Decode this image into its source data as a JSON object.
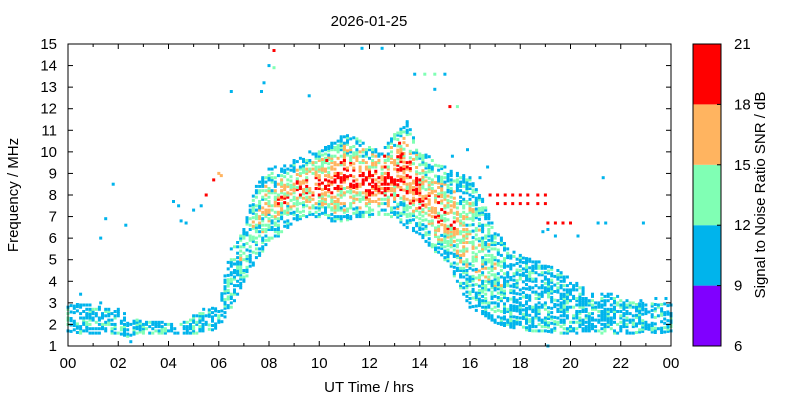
{
  "chart_data": {
    "type": "heatmap",
    "title": "2026-01-25",
    "xlabel": "UT Time / hrs",
    "ylabel": "Frequency / MHz",
    "xlim": [
      0,
      24
    ],
    "ylim": [
      1,
      15
    ],
    "x_ticks": [
      "00",
      "02",
      "04",
      "06",
      "08",
      "10",
      "12",
      "14",
      "16",
      "18",
      "20",
      "22",
      "00"
    ],
    "y_ticks": [
      "1",
      "2",
      "3",
      "4",
      "5",
      "6",
      "7",
      "8",
      "9",
      "10",
      "11",
      "12",
      "13",
      "14",
      "15"
    ],
    "colorbar": {
      "label": "Signal to Noise Ratio SNR / dB",
      "ticks": [
        "6",
        "9",
        "12",
        "15",
        "18",
        "21"
      ],
      "bins": [
        {
          "from": 6,
          "to": 9,
          "color": "#8000ff"
        },
        {
          "from": 9,
          "to": 12,
          "color": "#00b4ec"
        },
        {
          "from": 12,
          "to": 15,
          "color": "#80ffb4"
        },
        {
          "from": 15,
          "to": 18,
          "color": "#ffb460"
        },
        {
          "from": 18,
          "to": 21,
          "color": "#ff0000"
        }
      ]
    },
    "profile": [
      [
        0.0,
        1.7,
        2.9
      ],
      [
        0.5,
        1.6,
        3.0
      ],
      [
        1.0,
        1.6,
        2.9
      ],
      [
        1.5,
        1.6,
        2.8
      ],
      [
        2.0,
        1.6,
        2.8
      ],
      [
        2.5,
        1.4,
        2.3
      ],
      [
        3.0,
        1.6,
        2.2
      ],
      [
        3.5,
        1.6,
        2.2
      ],
      [
        4.0,
        1.6,
        2.1
      ],
      [
        4.5,
        1.6,
        2.1
      ],
      [
        5.0,
        1.6,
        2.5
      ],
      [
        5.5,
        1.6,
        2.6
      ],
      [
        6.0,
        1.9,
        3.0
      ],
      [
        6.5,
        2.8,
        5.5
      ],
      [
        7.0,
        4.0,
        6.5
      ],
      [
        7.5,
        5.0,
        8.5
      ],
      [
        8.0,
        5.8,
        9.2
      ],
      [
        8.5,
        6.2,
        9.4
      ],
      [
        9.0,
        6.8,
        9.6
      ],
      [
        9.5,
        7.0,
        10.0
      ],
      [
        10.0,
        7.0,
        10.0
      ],
      [
        10.5,
        6.8,
        10.4
      ],
      [
        11.0,
        6.8,
        10.8
      ],
      [
        11.5,
        7.0,
        10.6
      ],
      [
        12.0,
        7.0,
        10.3
      ],
      [
        12.5,
        7.0,
        10.0
      ],
      [
        13.0,
        7.0,
        10.8
      ],
      [
        13.5,
        6.5,
        11.4
      ],
      [
        14.0,
        6.2,
        10.0
      ],
      [
        14.5,
        5.5,
        9.7
      ],
      [
        15.0,
        5.0,
        9.3
      ],
      [
        15.5,
        4.0,
        9.0
      ],
      [
        16.0,
        2.8,
        8.8
      ],
      [
        16.5,
        2.5,
        7.8
      ],
      [
        17.0,
        2.1,
        6.5
      ],
      [
        17.5,
        1.9,
        5.5
      ],
      [
        18.0,
        1.8,
        5.2
      ],
      [
        18.5,
        1.7,
        5.0
      ],
      [
        19.0,
        1.7,
        4.8
      ],
      [
        19.5,
        1.6,
        4.5
      ],
      [
        20.0,
        1.6,
        4.2
      ],
      [
        20.5,
        1.6,
        3.8
      ],
      [
        21.0,
        1.6,
        3.5
      ],
      [
        21.5,
        1.6,
        3.5
      ],
      [
        22.0,
        1.6,
        3.3
      ],
      [
        22.5,
        1.6,
        3.1
      ],
      [
        23.0,
        1.7,
        3.0
      ],
      [
        23.5,
        1.6,
        3.0
      ],
      [
        24.0,
        1.7,
        3.0
      ]
    ],
    "points": [
      [
        8.2,
        14.7,
        20
      ],
      [
        9.6,
        12.6,
        10
      ],
      [
        6.5,
        12.8,
        10
      ],
      [
        7.7,
        12.8,
        10
      ],
      [
        7.8,
        13.2,
        10
      ],
      [
        8.0,
        14.0,
        10
      ],
      [
        8.2,
        13.9,
        12
      ],
      [
        11.7,
        14.8,
        10
      ],
      [
        12.5,
        14.8,
        10
      ],
      [
        13.8,
        13.6,
        10
      ],
      [
        14.2,
        13.6,
        12
      ],
      [
        14.6,
        13.6,
        12
      ],
      [
        15.0,
        13.6,
        10
      ],
      [
        14.6,
        12.9,
        10
      ],
      [
        15.2,
        12.1,
        20
      ],
      [
        15.5,
        12.1,
        13
      ],
      [
        1.3,
        6.0,
        10
      ],
      [
        1.5,
        6.9,
        10
      ],
      [
        1.8,
        8.5,
        10
      ],
      [
        2.3,
        6.6,
        10
      ],
      [
        4.2,
        7.7,
        10
      ],
      [
        4.4,
        7.5,
        10
      ],
      [
        4.5,
        6.8,
        10
      ],
      [
        4.7,
        6.7,
        10
      ],
      [
        5.0,
        7.3,
        10
      ],
      [
        5.3,
        7.5,
        10
      ],
      [
        5.5,
        8.0,
        20
      ],
      [
        5.8,
        8.7,
        20
      ],
      [
        6.0,
        9.0,
        16
      ],
      [
        6.1,
        8.9,
        16
      ],
      [
        3.0,
        2.0,
        10
      ],
      [
        17.1,
        8.0,
        20
      ],
      [
        17.4,
        8.0,
        20
      ],
      [
        17.7,
        8.0,
        20
      ],
      [
        18.0,
        8.0,
        20
      ],
      [
        18.3,
        8.0,
        20
      ],
      [
        18.7,
        8.0,
        20
      ],
      [
        19.0,
        8.0,
        20
      ],
      [
        17.1,
        7.6,
        20
      ],
      [
        17.4,
        7.6,
        20
      ],
      [
        17.7,
        7.6,
        20
      ],
      [
        18.0,
        7.6,
        20
      ],
      [
        18.3,
        7.6,
        20
      ],
      [
        18.7,
        7.6,
        20
      ],
      [
        19.0,
        7.6,
        20
      ],
      [
        19.1,
        6.7,
        20
      ],
      [
        19.4,
        6.7,
        20
      ],
      [
        19.7,
        6.7,
        20
      ],
      [
        20.0,
        6.7,
        20
      ],
      [
        18.9,
        6.3,
        10
      ],
      [
        19.1,
        6.4,
        10
      ],
      [
        19.4,
        6.1,
        10
      ],
      [
        20.3,
        6.1,
        10
      ],
      [
        21.1,
        6.7,
        10
      ],
      [
        21.4,
        6.7,
        10
      ],
      [
        21.3,
        8.8,
        10
      ],
      [
        22.9,
        6.7,
        10
      ],
      [
        16.8,
        8.0,
        20
      ],
      [
        16.4,
        8.8,
        10
      ],
      [
        16.7,
        9.3,
        10
      ],
      [
        15.9,
        10.1,
        10
      ],
      [
        15.3,
        9.8,
        10
      ],
      [
        0.5,
        3.4,
        10
      ],
      [
        1.3,
        3.0,
        10
      ],
      [
        2.5,
        1.2,
        10
      ],
      [
        5.4,
        2.7,
        10
      ],
      [
        19.1,
        1.0,
        10
      ],
      [
        22.8,
        3.1,
        10
      ],
      [
        23.4,
        3.2,
        10
      ],
      [
        23.8,
        3.2,
        10
      ],
      [
        13.3,
        9.9,
        20
      ],
      [
        13.2,
        10.4,
        20
      ],
      [
        11.0,
        9.6,
        20
      ],
      [
        12.6,
        9.8,
        20
      ],
      [
        10.3,
        9.6,
        20
      ]
    ]
  }
}
